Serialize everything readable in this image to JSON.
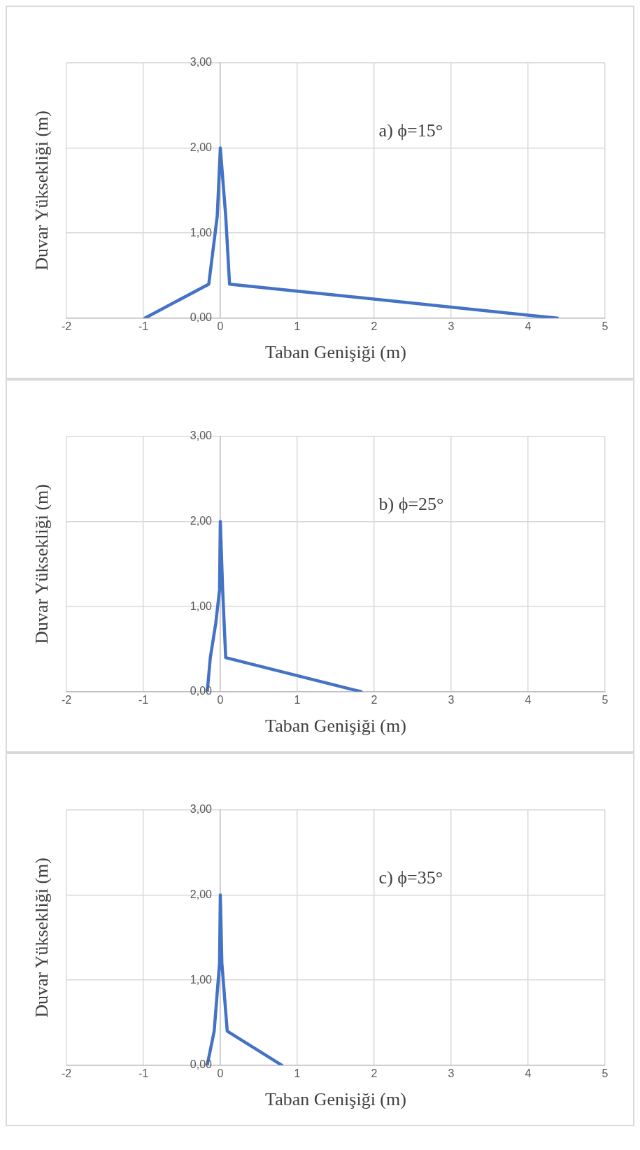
{
  "chart_data": [
    {
      "type": "line",
      "xlabel": "Taban Genişiği (m)",
      "ylabel": "Duvar Yüksekliği (m)",
      "annotations": [
        "a) ϕ=15°"
      ],
      "series": [
        {
          "color": "#4472c4",
          "x": [
            -0.98,
            -0.15,
            -0.04,
            0,
            0.07,
            0.12,
            4.38
          ],
          "values": [
            0,
            0.4,
            1.2,
            2,
            1.2,
            0.4,
            0
          ]
        }
      ],
      "xlim": [
        -2,
        5
      ],
      "xticks": [
        -2,
        -1,
        0,
        1,
        2,
        3,
        4,
        5
      ],
      "ylim": [
        0,
        3
      ],
      "yticks": [
        {
          "value": 0,
          "label": "0,00"
        },
        {
          "value": 1,
          "label": "1,00"
        },
        {
          "value": 2,
          "label": "2,00"
        },
        {
          "value": 3,
          "label": "3,00"
        }
      ],
      "grid": true,
      "legend": false,
      "marker": "none",
      "line_style": "solid"
    },
    {
      "type": "line",
      "xlabel": "Taban Genişiği (m)",
      "ylabel": "Duvar Yüksekliği (m)",
      "annotations": [
        "b) ϕ=25°"
      ],
      "series": [
        {
          "color": "#4472c4",
          "x": [
            -0.17,
            -0.13,
            -0.06,
            -0.01,
            0,
            0.03,
            0.07,
            1.83
          ],
          "values": [
            0,
            0.4,
            0.8,
            1.2,
            2,
            1.2,
            0.4,
            0
          ]
        }
      ],
      "xlim": [
        -2,
        5
      ],
      "xticks": [
        -2,
        -1,
        0,
        1,
        2,
        3,
        4,
        5
      ],
      "ylim": [
        0,
        3
      ],
      "yticks": [
        {
          "value": 0,
          "label": "0,00"
        },
        {
          "value": 1,
          "label": "1,00"
        },
        {
          "value": 2,
          "label": "2,00"
        },
        {
          "value": 3,
          "label": "3,00"
        }
      ],
      "grid": true,
      "legend": false,
      "marker": "none",
      "line_style": "solid"
    },
    {
      "type": "line",
      "xlabel": "Taban Genişiği (m)",
      "ylabel": "Duvar Yüksekliği (m)",
      "annotations": [
        "c) ϕ=35°"
      ],
      "series": [
        {
          "color": "#4472c4",
          "x": [
            -0.17,
            -0.08,
            -0.01,
            0,
            0.02,
            0.09,
            0.8
          ],
          "values": [
            0,
            0.4,
            1.2,
            2,
            1.2,
            0.4,
            0
          ]
        }
      ],
      "xlim": [
        -2,
        5
      ],
      "xticks": [
        -2,
        -1,
        0,
        1,
        2,
        3,
        4,
        5
      ],
      "ylim": [
        0,
        3
      ],
      "yticks": [
        {
          "value": 0,
          "label": "0,00"
        },
        {
          "value": 1,
          "label": "1,00"
        },
        {
          "value": 2,
          "label": "2,00"
        },
        {
          "value": 3,
          "label": "3,00"
        }
      ],
      "grid": true,
      "legend": false,
      "marker": "none",
      "line_style": "solid"
    }
  ]
}
